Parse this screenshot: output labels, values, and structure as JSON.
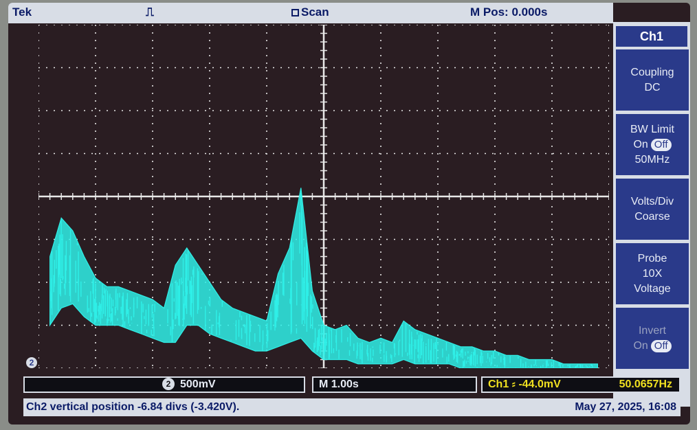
{
  "topbar": {
    "brand": "Tek",
    "trigger_glyph": "⎍",
    "acquire_state": "Scan",
    "horizontal_position": "M Pos: 0.000s"
  },
  "menu": {
    "title": "Ch1",
    "items": [
      {
        "line1": "Coupling",
        "line2": "DC"
      },
      {
        "line1": "BW Limit",
        "on": "On",
        "off": "Off",
        "line3": "50MHz"
      },
      {
        "line1": "Volts/Div",
        "line2": "Coarse"
      },
      {
        "line1": "Probe",
        "line2": "10X",
        "line3": "Voltage"
      },
      {
        "line1": "Invert",
        "on": "On",
        "off": "Off"
      }
    ]
  },
  "status": {
    "ch2_badge": "2",
    "ch2_scale": "500mV",
    "timebase": "M 1.00s",
    "trigger_readout": "Ch1 ⸗ -44.0mV",
    "frequency": "50.0657Hz",
    "message": "Ch2 vertical position -6.84 divs (-3.420V).",
    "datetime": "May 27, 2025, 16:08"
  },
  "colors": {
    "trace": "#2ff0e8",
    "screen_bg": "#2a1d22",
    "panel": "#d8dde6",
    "menu_blue": "#2a3a8a",
    "status_yellow": "#f0e020"
  },
  "chart_data": {
    "type": "line",
    "title": "",
    "xlabel": "",
    "ylabel": "",
    "xlim": [
      -5,
      5
    ],
    "ylim": [
      -4,
      4
    ],
    "grid": true,
    "series": [
      {
        "color": "#2ff0e8",
        "envelope": {
          "x": [
            -4.8,
            -4.6,
            -4.4,
            -4.2,
            -4.0,
            -3.8,
            -3.6,
            -3.4,
            -3.2,
            -3.0,
            -2.8,
            -2.6,
            -2.4,
            -2.2,
            -2.0,
            -1.8,
            -1.6,
            -1.4,
            -1.2,
            -1.0,
            -0.8,
            -0.6,
            -0.4,
            -0.2,
            0.0,
            0.2,
            0.4,
            0.6,
            0.8,
            1.0,
            1.2,
            1.4,
            1.6,
            1.8,
            2.0,
            2.2,
            2.4,
            2.6,
            2.8,
            3.0,
            3.2,
            3.4,
            3.6,
            3.8,
            4.0,
            4.2,
            4.4,
            4.6,
            4.8
          ],
          "upper": [
            -1.4,
            -0.5,
            -0.8,
            -1.4,
            -1.9,
            -2.1,
            -2.1,
            -2.2,
            -2.3,
            -2.4,
            -2.6,
            -1.6,
            -1.2,
            -1.6,
            -2.0,
            -2.4,
            -2.6,
            -2.7,
            -2.8,
            -2.9,
            -1.8,
            -1.2,
            0.2,
            -2.2,
            -3.0,
            -3.1,
            -3.0,
            -3.3,
            -3.4,
            -3.3,
            -3.4,
            -2.9,
            -3.1,
            -3.2,
            -3.3,
            -3.4,
            -3.5,
            -3.5,
            -3.6,
            -3.6,
            -3.7,
            -3.7,
            -3.8,
            -3.8,
            -3.8,
            -3.9,
            -3.9,
            -3.9,
            -3.9
          ],
          "lower": [
            -3.0,
            -2.6,
            -2.5,
            -2.8,
            -3.0,
            -3.0,
            -3.0,
            -3.1,
            -3.2,
            -3.3,
            -3.4,
            -3.4,
            -3.0,
            -3.0,
            -3.2,
            -3.3,
            -3.4,
            -3.5,
            -3.6,
            -3.6,
            -3.5,
            -3.4,
            -3.3,
            -3.6,
            -3.8,
            -3.8,
            -3.8,
            -3.9,
            -3.9,
            -3.9,
            -3.9,
            -3.8,
            -3.9,
            -3.9,
            -3.9,
            -3.9,
            -4.0,
            -4.0,
            -4.0,
            -4.0,
            -4.0,
            -4.0,
            -4.0,
            -4.0,
            -4.0,
            -4.0,
            -4.0,
            -4.0,
            -4.0
          ]
        }
      }
    ]
  }
}
